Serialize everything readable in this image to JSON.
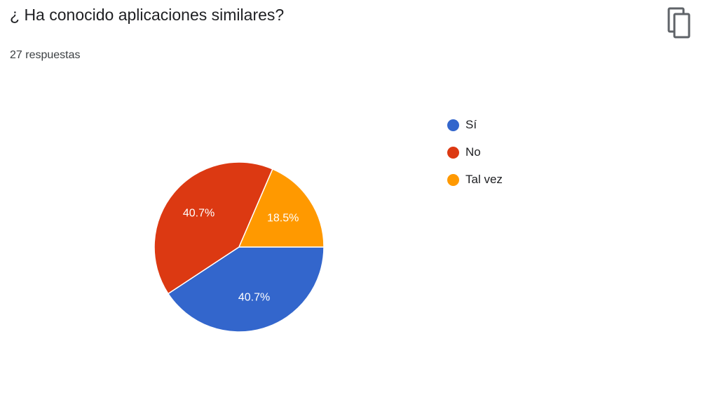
{
  "question": {
    "title": "¿ Ha conocido aplicaciones similares?",
    "response_count": "27 respuestas"
  },
  "toolbar": {
    "copy_icon": "copy-icon"
  },
  "chart_data": {
    "type": "pie",
    "categories": [
      "Sí",
      "No",
      "Tal vez"
    ],
    "values": [
      40.7,
      40.7,
      18.5
    ],
    "labels": [
      "40.7%",
      "40.7%",
      "18.5%"
    ],
    "colors": [
      "#3366CC",
      "#DC3912",
      "#FF9900"
    ],
    "start_angle_deg": 0,
    "direction": "clockwise",
    "legend_position": "right"
  }
}
